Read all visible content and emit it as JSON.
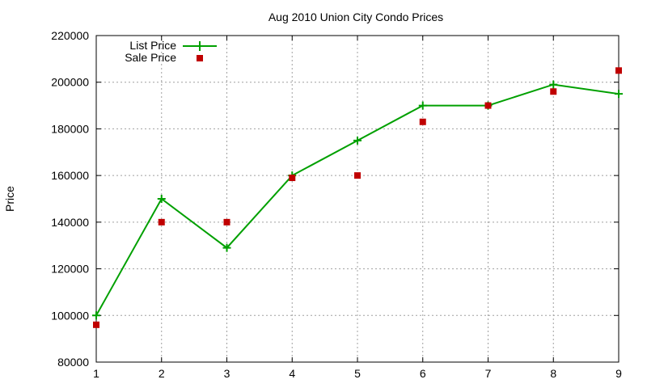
{
  "chart_data": {
    "type": "line",
    "title": "Aug 2010 Union City Condo Prices",
    "xlabel": "",
    "ylabel": "Price",
    "x": [
      1,
      2,
      3,
      4,
      5,
      6,
      7,
      8,
      9
    ],
    "xlim": [
      1,
      9
    ],
    "ylim": [
      80000,
      220000
    ],
    "xticks": [
      1,
      2,
      3,
      4,
      5,
      6,
      7,
      8,
      9
    ],
    "yticks": [
      80000,
      100000,
      120000,
      140000,
      160000,
      180000,
      200000,
      220000
    ],
    "grid": true,
    "legend_position": "top-left",
    "series": [
      {
        "name": "List Price",
        "style": "line-with-plus-markers",
        "color": "#00a000",
        "values": [
          100000,
          150000,
          129000,
          160000,
          175000,
          190000,
          190000,
          199000,
          195000
        ]
      },
      {
        "name": "Sale Price",
        "style": "square-markers",
        "color": "#c00000",
        "values": [
          96000,
          140000,
          140000,
          159000,
          160000,
          183000,
          190000,
          196000,
          205000
        ]
      }
    ]
  }
}
